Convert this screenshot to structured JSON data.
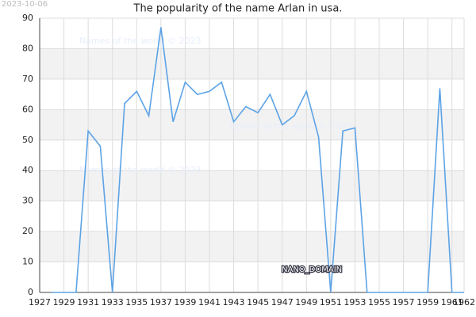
{
  "chart_data": {
    "type": "line",
    "title": "The popularity of the name Arlan in usa.",
    "date_stamp": "2023-10-06",
    "watermarks": [
      "Names of the world © 2023",
      "Names of the world © 2023",
      "Names of the world © 2023"
    ],
    "annotation": "NANO_DOMAIN",
    "x": [
      1928,
      1929,
      1930,
      1931,
      1932,
      1933,
      1934,
      1935,
      1936,
      1937,
      1938,
      1939,
      1940,
      1941,
      1942,
      1943,
      1944,
      1945,
      1946,
      1947,
      1948,
      1949,
      1950,
      1951,
      1952,
      1953,
      1954,
      1955,
      1956,
      1957,
      1958,
      1959,
      1960,
      1961,
      1962
    ],
    "values": [
      0,
      0,
      0,
      53,
      48,
      0,
      62,
      66,
      58,
      87,
      56,
      69,
      65,
      66,
      69,
      56,
      61,
      59,
      65,
      55,
      58,
      66,
      51,
      0,
      53,
      54,
      0,
      0,
      0,
      0,
      0,
      0,
      67,
      0,
      0
    ],
    "color": "#5ca3e6",
    "xlim": [
      1927,
      1962
    ],
    "xticks": [
      1927,
      1929,
      1931,
      1933,
      1935,
      1937,
      1939,
      1941,
      1943,
      1945,
      1947,
      1949,
      1951,
      1953,
      1955,
      1957,
      1959,
      1961,
      1962
    ],
    "ylim": [
      0,
      90
    ],
    "yticks": [
      0,
      10,
      20,
      30,
      40,
      50,
      60,
      70,
      80,
      90
    ],
    "grid": true,
    "bands": true
  }
}
